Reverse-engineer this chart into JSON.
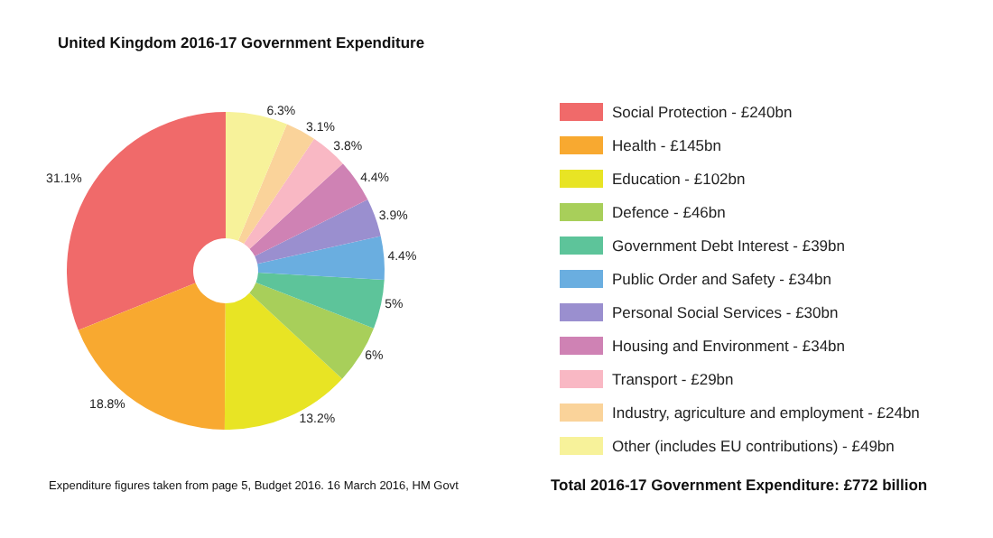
{
  "chart_data": {
    "type": "donut",
    "title": "United Kingdom 2016-17 Government Expenditure",
    "categories": [
      "Social Protection - £240bn",
      "Health - £145bn",
      "Education - £102bn",
      "Defence - £46bn",
      "Government Debt Interest - £39bn",
      "Public Order and Safety - £34bn",
      "Personal Social Services - £30bn",
      "Housing and Environment - £34bn",
      "Transport - £29bn",
      "Industry, agriculture and employment - £24bn",
      "Other (includes EU contributions) - £49bn"
    ],
    "values": [
      31.1,
      18.8,
      13.2,
      6,
      5,
      4.4,
      3.9,
      4.4,
      3.8,
      3.1,
      6.3
    ],
    "colors": [
      "#f06a6a",
      "#f8a930",
      "#e8e424",
      "#a8cf5a",
      "#5dc49a",
      "#6aaee0",
      "#9a8fcf",
      "#cf82b4",
      "#f9b8c4",
      "#fad39a",
      "#f7f29a"
    ],
    "value_labels": [
      "31.1%",
      "18.8%",
      "13.2%",
      "6%",
      "5%",
      "4.4%",
      "3.9%",
      "4.4%",
      "3.8%",
      "3.1%",
      "6.3%"
    ],
    "legend": "right",
    "annotations": [
      "Expenditure figures taken from page 5, Budget 2016. 16 March 2016, HM Govt",
      "Total 2016-17 Government Expenditure: £772 billion"
    ]
  }
}
